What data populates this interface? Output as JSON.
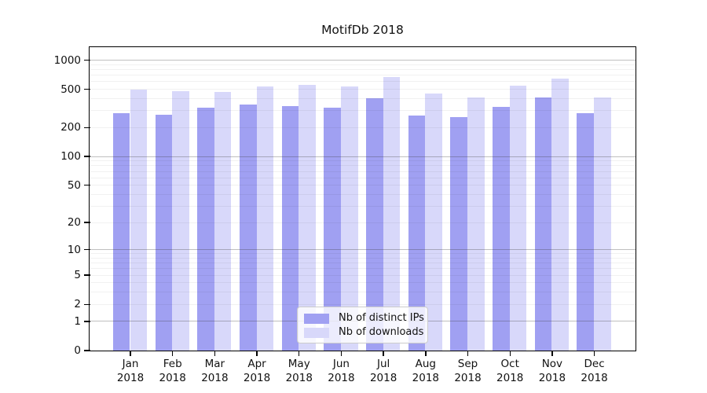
{
  "title": "MotifDb 2018",
  "chart_data": {
    "type": "bar",
    "title": "MotifDb 2018",
    "y_scale": "log1p",
    "grid": true,
    "legend_position": "bottom-center",
    "y_ticks": [
      1000,
      500,
      200,
      100,
      50,
      20,
      10,
      5,
      2,
      1,
      0
    ],
    "y_axis_top_value": 1350,
    "months": [
      "Jan",
      "Feb",
      "Mar",
      "Apr",
      "May",
      "Jun",
      "Jul",
      "Aug",
      "Sep",
      "Oct",
      "Nov",
      "Dec"
    ],
    "year": "2018",
    "series": [
      {
        "name": "Nb of distinct IPs",
        "color": "#a0a0f2",
        "values": [
          280,
          270,
          325,
          350,
          335,
          325,
          400,
          265,
          255,
          330,
          415,
          285
        ]
      },
      {
        "name": "Nb of downloads",
        "color": "#d8d8fa",
        "values": [
          500,
          480,
          470,
          535,
          555,
          530,
          670,
          455,
          410,
          540,
          650,
          415
        ]
      }
    ]
  }
}
